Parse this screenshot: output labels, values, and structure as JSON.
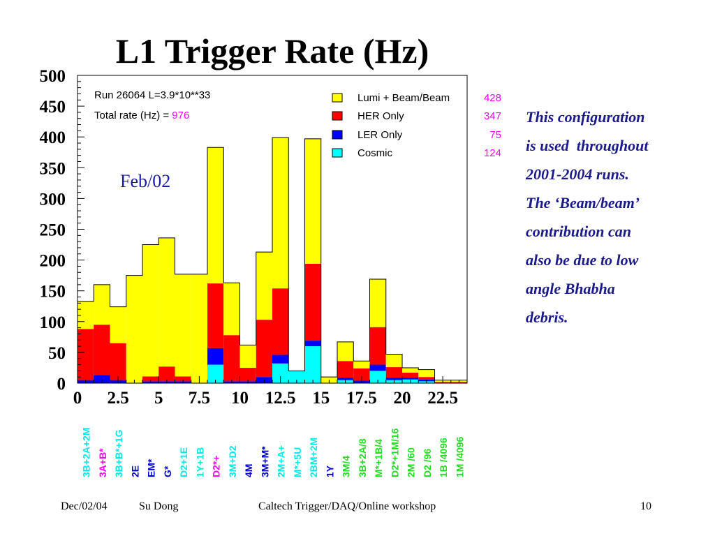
{
  "slide": {
    "title": "L1 Trigger Rate (Hz)",
    "side_text": [
      "This configuration",
      "is used  throughout",
      "2001-2004 runs.",
      "",
      "The ‘Beam/beam’",
      "contribution can",
      "also be due to low",
      "angle Bhabha",
      "debris."
    ],
    "footer": {
      "date": "Dec/02/04",
      "author": "Su Dong",
      "event": "Caltech Trigger/DAQ/Online workshop",
      "page": "10"
    }
  },
  "chart_data": {
    "type": "bar",
    "stacked": true,
    "title": "L1 Trigger Rate (Hz)",
    "annotation_run": "Run 26064   L=3.9*10**33",
    "annotation_total_label": "Total rate (Hz) = ",
    "annotation_total_value": "976",
    "period_label": "Feb/02",
    "xlim": [
      0,
      24
    ],
    "ylim": [
      0,
      500
    ],
    "x_ticks": [
      "0",
      "2.5",
      "5",
      "7.5",
      "10",
      "12.5",
      "15",
      "17.5",
      "20",
      "22.5"
    ],
    "x_tick_values": [
      0,
      2.5,
      5,
      7.5,
      10,
      12.5,
      15,
      17.5,
      20,
      22.5
    ],
    "y_ticks": [
      "0",
      "50",
      "100",
      "150",
      "200",
      "250",
      "300",
      "350",
      "400",
      "450",
      "500"
    ],
    "y_tick_values": [
      0,
      50,
      100,
      150,
      200,
      250,
      300,
      350,
      400,
      450,
      500
    ],
    "bins": [
      0,
      1,
      2,
      3,
      4,
      5,
      6,
      7,
      8,
      9,
      10,
      11,
      12,
      13,
      14,
      15,
      16,
      17,
      18,
      19,
      20,
      21,
      22,
      23
    ],
    "totals": [
      133,
      160,
      124,
      175,
      225,
      236,
      177,
      177,
      383,
      163,
      62,
      213,
      399,
      20,
      397,
      10,
      67,
      36,
      169,
      47,
      25,
      22,
      5,
      5
    ],
    "series": [
      {
        "name": "Cosmic",
        "color": "#00ffff",
        "values": [
          0,
          0,
          0,
          0,
          0,
          0,
          0,
          0,
          30,
          0,
          0,
          0,
          32,
          20,
          60,
          0,
          5,
          0,
          20,
          5,
          6,
          3,
          0,
          0
        ]
      },
      {
        "name": "LER Only",
        "color": "#0000ff",
        "values": [
          5,
          13,
          5,
          0,
          3,
          3,
          3,
          0,
          27,
          3,
          3,
          10,
          14,
          0,
          9,
          0,
          4,
          4,
          10,
          4,
          3,
          3,
          0,
          0
        ]
      },
      {
        "name": "HER Only",
        "color": "#ff0000",
        "values": [
          83,
          82,
          60,
          0,
          8,
          24,
          8,
          0,
          105,
          75,
          22,
          93,
          108,
          0,
          125,
          0,
          27,
          20,
          61,
          17,
          8,
          4,
          2,
          2
        ]
      },
      {
        "name": "Lumi + Beam/Beam",
        "color": "#ffff00",
        "values": [
          45,
          65,
          59,
          175,
          214,
          209,
          166,
          177,
          221,
          85,
          37,
          110,
          245,
          0,
          203,
          10,
          31,
          12,
          78,
          21,
          8,
          12,
          3,
          3
        ]
      }
    ],
    "legend": [
      {
        "label": "Lumi + Beam/Beam",
        "value": "428",
        "color": "#ffff00"
      },
      {
        "label": "HER Only",
        "value": "347",
        "color": "#ff0000"
      },
      {
        "label": "LER Only",
        "value": "75",
        "color": "#0000ff"
      },
      {
        "label": "Cosmic",
        "value": "124",
        "color": "#00ffff"
      }
    ],
    "legend_position": "top-right",
    "trigger_labels": [
      {
        "text": "3B+2A+2M",
        "color": "#00e8e8"
      },
      {
        "text": "3A+B*",
        "color": "#ff00ff"
      },
      {
        "text": "3B+B*+1G",
        "color": "#00e8e8"
      },
      {
        "text": "2E",
        "color": "#0000cc"
      },
      {
        "text": "EM*",
        "color": "#0000cc"
      },
      {
        "text": "G*",
        "color": "#0000cc"
      },
      {
        "text": "D2+1E",
        "color": "#00e8e8"
      },
      {
        "text": "1Y+1B",
        "color": "#00e8e8"
      },
      {
        "text": "D2*+",
        "color": "#ff00ff"
      },
      {
        "text": "3M+D2",
        "color": "#00e8e8"
      },
      {
        "text": "4M",
        "color": "#0000cc"
      },
      {
        "text": "3M+M*",
        "color": "#0000cc"
      },
      {
        "text": "2M+A+",
        "color": "#00e8e8"
      },
      {
        "text": "M*+5U",
        "color": "#00e8e8"
      },
      {
        "text": "2BM+2M",
        "color": "#00e8e8"
      },
      {
        "text": "1Y",
        "color": "#0000cc"
      },
      {
        "text": "3M/4",
        "color": "#22dd22"
      },
      {
        "text": "3B+2A/8",
        "color": "#22dd22"
      },
      {
        "text": "M*+1B/4",
        "color": "#22dd22"
      },
      {
        "text": "D2*+1M/16",
        "color": "#22dd22"
      },
      {
        "text": "2M /60",
        "color": "#22dd22"
      },
      {
        "text": "D2 /96",
        "color": "#22dd22"
      },
      {
        "text": "1B /4096",
        "color": "#22dd22"
      },
      {
        "text": "1M /4096",
        "color": "#22dd22"
      }
    ]
  }
}
